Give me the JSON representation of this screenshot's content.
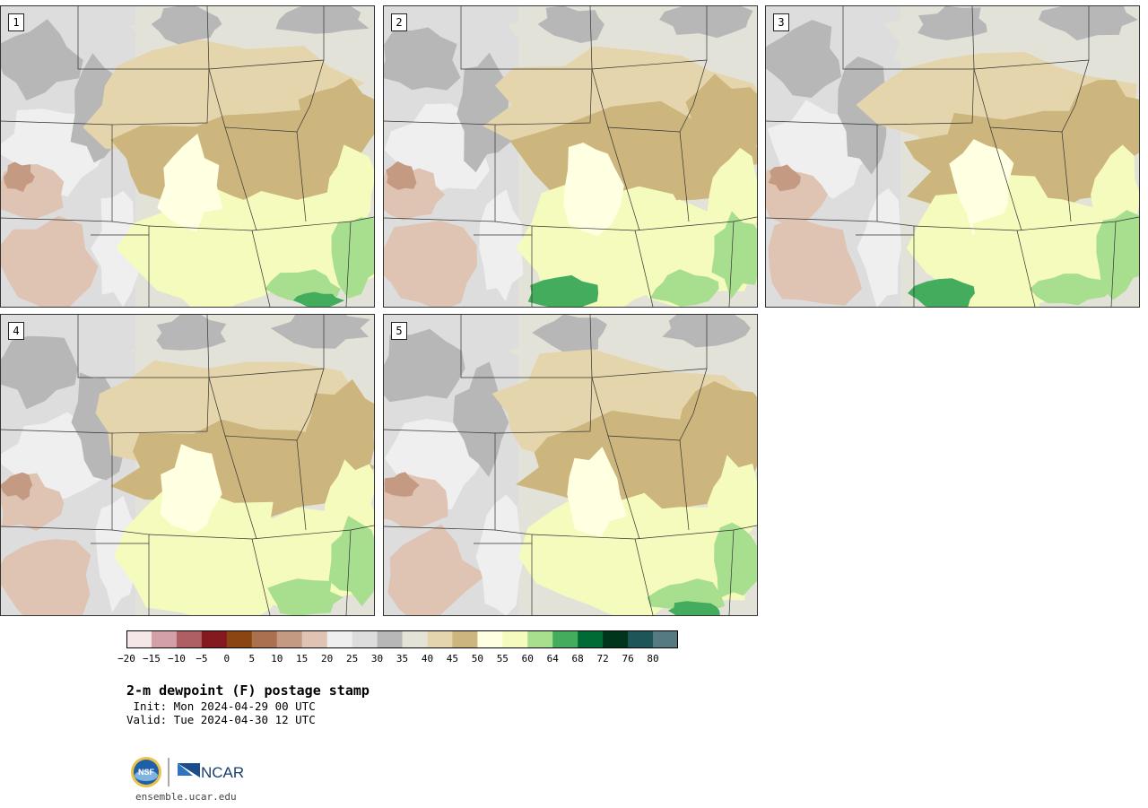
{
  "panels": [
    {
      "label": "1"
    },
    {
      "label": "2"
    },
    {
      "label": "3"
    },
    {
      "label": "4"
    },
    {
      "label": "5"
    }
  ],
  "colorbar": {
    "levels": [
      "-20",
      "-15",
      "-10",
      "-5",
      "0",
      "5",
      "10",
      "15",
      "20",
      "25",
      "30",
      "35",
      "40",
      "45",
      "50",
      "55",
      "60",
      "64",
      "68",
      "72",
      "76",
      "80"
    ],
    "colors": [
      "#f5e6e8",
      "#d3a0a8",
      "#ae5f64",
      "#841a1f",
      "#8b4513",
      "#a9714f",
      "#c49a82",
      "#dfc3b3",
      "#efefef",
      "#dddddd",
      "#b7b7b7",
      "#e3e3d7",
      "#e4d5ac",
      "#cdb67d",
      "#ffffe2",
      "#f5fbbc",
      "#a8df8e",
      "#43ad5d",
      "#006b34",
      "#00341b",
      "#1d5558",
      "#567a82"
    ]
  },
  "title": "2-m dewpoint (F) postage stamp",
  "init_line": " Init: Mon 2024-04-29 00 UTC",
  "valid_line": "Valid: Tue 2024-04-30 12 UTC",
  "logos": {
    "left": "NSF",
    "right": "NCAR"
  },
  "footer_url": "ensemble.ucar.edu"
}
